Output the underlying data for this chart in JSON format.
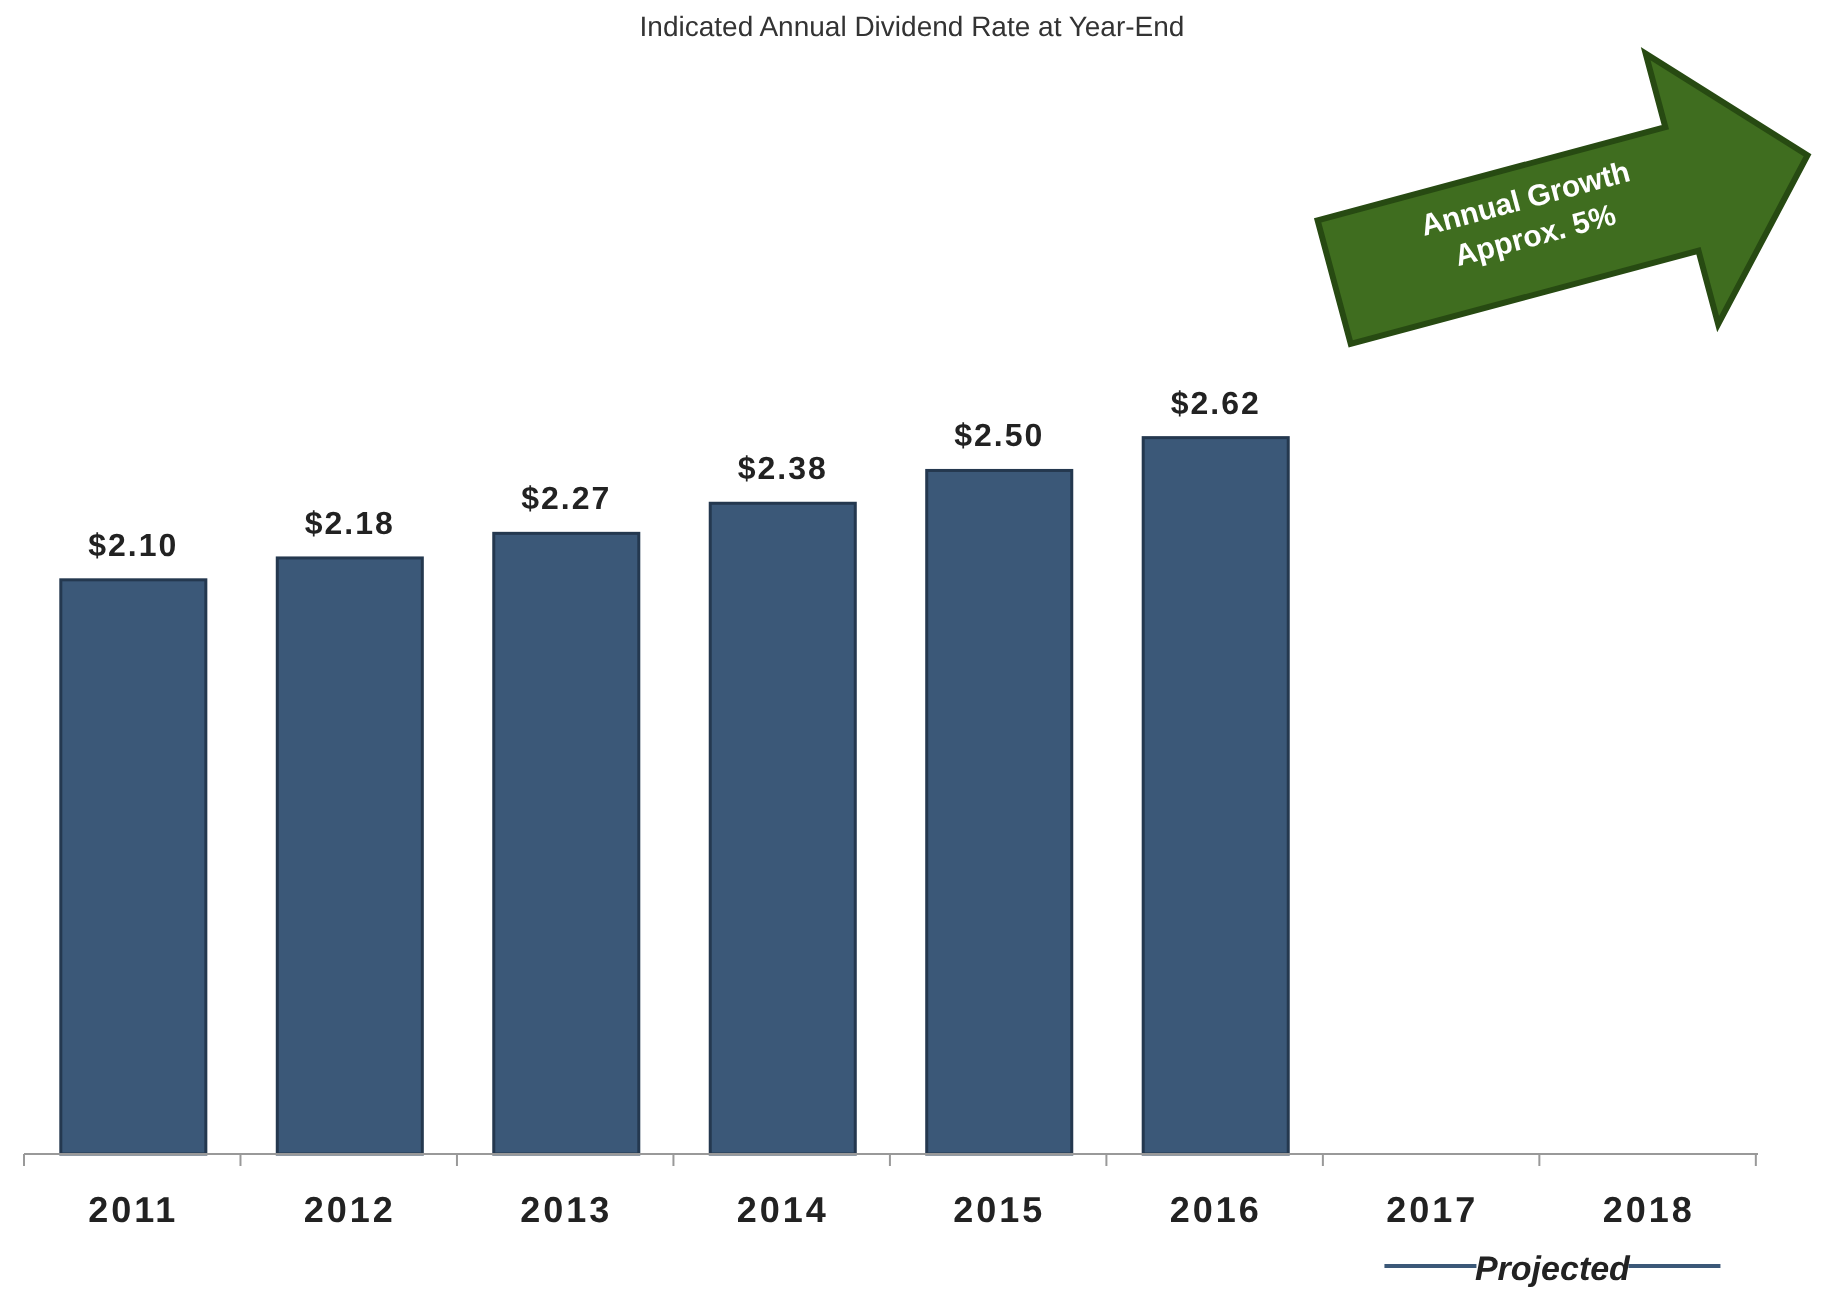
{
  "chart_data": {
    "type": "bar",
    "title": "Indicated Annual Dividend Rate at Year-End",
    "categories": [
      "2011",
      "2012",
      "2013",
      "2014",
      "2015",
      "2016",
      "2017",
      "2018"
    ],
    "values": [
      2.1,
      2.18,
      2.27,
      2.38,
      2.5,
      2.62,
      null,
      null
    ],
    "value_labels": [
      "$2.10",
      "$2.18",
      "$2.27",
      "$2.38",
      "$2.50",
      "$2.62",
      null,
      null
    ],
    "color": "#3b5878",
    "tick_labels": "x",
    "grid": false,
    "annotations": [
      "Annual Growth Approx. 5%",
      "Projected"
    ]
  }
}
